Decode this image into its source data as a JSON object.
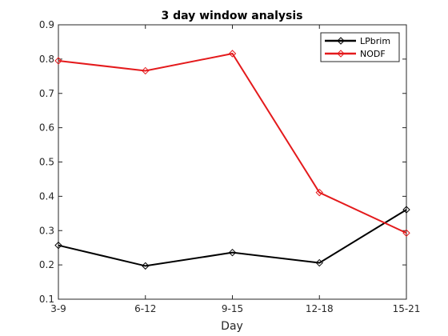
{
  "chart_data": {
    "type": "line",
    "title": "3 day window analysis",
    "xlabel": "Day",
    "ylabel": "",
    "categories": [
      "3-9",
      "6-12",
      "9-15",
      "12-18",
      "15-21"
    ],
    "ylim": [
      0.1,
      0.9
    ],
    "yticks": [
      "0.1",
      "0.2",
      "0.3",
      "0.4",
      "0.5",
      "0.6",
      "0.7",
      "0.8",
      "0.9"
    ],
    "grid": false,
    "legend_position": "top-right",
    "series": [
      {
        "name": "LPbrim",
        "color": "#000000",
        "marker": "diamond",
        "values": [
          0.257,
          0.197,
          0.236,
          0.206,
          0.361
        ]
      },
      {
        "name": "NODF",
        "color": "#e41a1c",
        "marker": "diamond",
        "values": [
          0.795,
          0.766,
          0.816,
          0.411,
          0.293
        ]
      }
    ]
  }
}
